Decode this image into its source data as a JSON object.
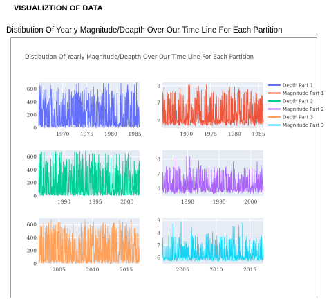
{
  "page": {
    "heading": "VISUALIZTION OF DATA",
    "subheading": "Distibution Of Yearly Magnitude/Deapth Over Our Time Line For Each Partition"
  },
  "figure": {
    "title": "Distibution Of Yearly Magnitude/Deapth Over Our Time Line For Each Partition",
    "legend": [
      {
        "name": "Depth Part 1",
        "color": "#636efa"
      },
      {
        "name": "Magnitude Part 1",
        "color": "#ef553b"
      },
      {
        "name": "Depth Part 2",
        "color": "#00cc96"
      },
      {
        "name": "Magnitude Part 2",
        "color": "#ab63fa"
      },
      {
        "name": "Depth Part 3",
        "color": "#ffa15a"
      },
      {
        "name": "Magnitude Part 3",
        "color": "#19d3f3"
      }
    ],
    "legend_position": "top-right"
  },
  "chart_data": [
    {
      "type": "line",
      "name": "Depth Part 1",
      "color": "#636efa",
      "x_range": [
        1965,
        1986
      ],
      "xticks": [
        "1970",
        "1975",
        "1980",
        "1985"
      ],
      "y_range": [
        0,
        700
      ],
      "yticks": [
        "0",
        "200",
        "400",
        "600"
      ],
      "typical_peak": 600,
      "max": 700
    },
    {
      "type": "line",
      "name": "Magnitude Part 1",
      "color": "#ef553b",
      "x_range": [
        1965,
        1986
      ],
      "xticks": [
        "1970",
        "1975",
        "1980",
        "1985"
      ],
      "y_range": [
        5.5,
        8.2
      ],
      "yticks": [
        "6",
        "7",
        "8"
      ],
      "typical_peak": 7.5,
      "max": 8.1
    },
    {
      "type": "line",
      "name": "Depth Part 2",
      "color": "#00cc96",
      "x_range": [
        1986,
        2002
      ],
      "xticks": [
        "1990",
        "1995",
        "2000"
      ],
      "y_range": [
        0,
        700
      ],
      "yticks": [
        "0",
        "200",
        "400",
        "600"
      ],
      "typical_peak": 600,
      "max": 690
    },
    {
      "type": "line",
      "name": "Magnitude Part 2",
      "color": "#ab63fa",
      "x_range": [
        1986,
        2002
      ],
      "xticks": [
        "1990",
        "1995",
        "2000"
      ],
      "y_range": [
        5.5,
        8.6
      ],
      "yticks": [
        "6",
        "7",
        "8"
      ],
      "typical_peak": 7.2,
      "max": 8.2
    },
    {
      "type": "line",
      "name": "Depth Part 3",
      "color": "#ffa15a",
      "x_range": [
        2002,
        2017
      ],
      "xticks": [
        "2005",
        "2010",
        "2015"
      ],
      "y_range": [
        0,
        700
      ],
      "yticks": [
        "0",
        "200",
        "400",
        "600"
      ],
      "typical_peak": 600,
      "max": 680
    },
    {
      "type": "line",
      "name": "Magnitude Part 3",
      "color": "#19d3f3",
      "x_range": [
        2002,
        2017
      ],
      "xticks": [
        "2005",
        "2010",
        "2015"
      ],
      "y_range": [
        5.5,
        9.2
      ],
      "yticks": [
        "6",
        "7",
        "8",
        "9"
      ],
      "typical_peak": 7.5,
      "max": 9.1
    }
  ]
}
